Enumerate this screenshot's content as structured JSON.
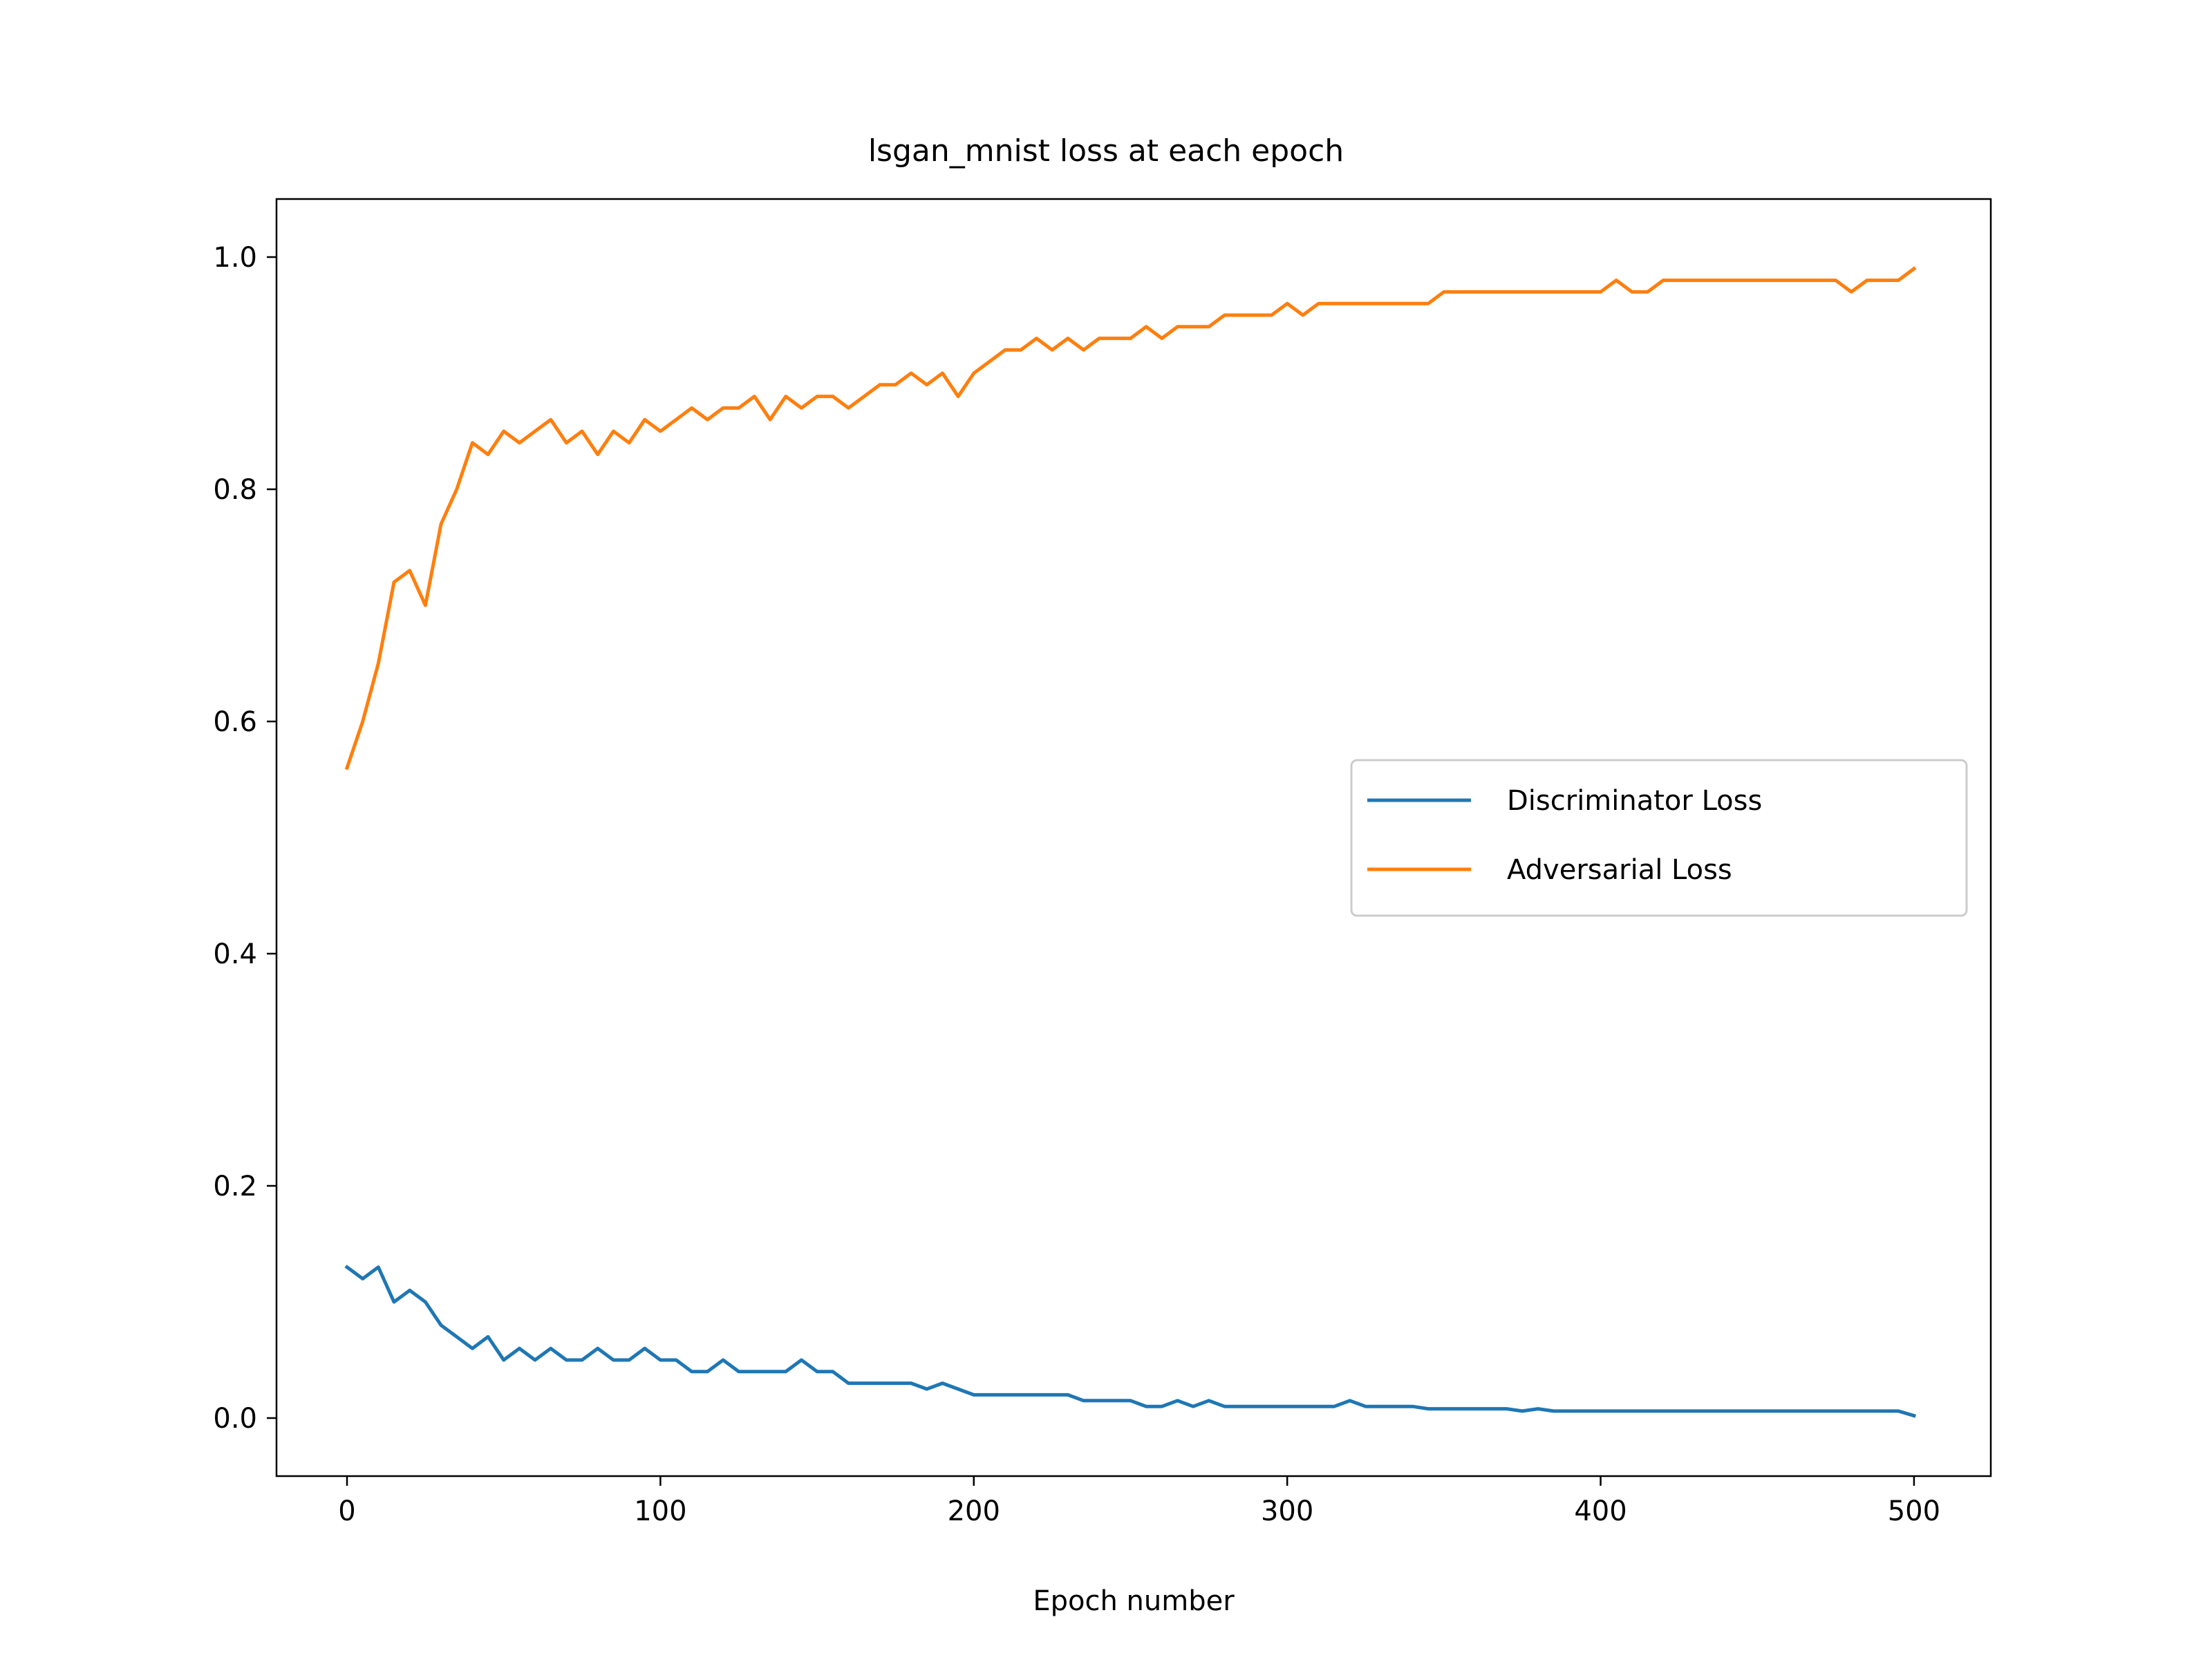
{
  "chart_data": {
    "type": "line",
    "title": "lsgan_mnist loss at each epoch",
    "xlabel": "Epoch number",
    "ylabel": "",
    "xlim": [
      -22.5,
      524.5
    ],
    "ylim": [
      -0.05,
      1.05
    ],
    "xticks": [
      0,
      100,
      200,
      300,
      400,
      500
    ],
    "yticks": [
      0.0,
      0.2,
      0.4,
      0.6,
      0.8,
      1.0
    ],
    "xtick_labels": [
      "0",
      "100",
      "200",
      "300",
      "400",
      "500"
    ],
    "ytick_labels": [
      "0.0",
      "0.2",
      "0.4",
      "0.6",
      "0.8",
      "1.0"
    ],
    "grid": false,
    "legend_position": "center-right",
    "x": [
      0,
      5,
      10,
      15,
      20,
      25,
      30,
      35,
      40,
      45,
      50,
      55,
      60,
      65,
      70,
      75,
      80,
      85,
      90,
      95,
      100,
      105,
      110,
      115,
      120,
      125,
      130,
      135,
      140,
      145,
      150,
      155,
      160,
      165,
      170,
      175,
      180,
      185,
      190,
      195,
      200,
      205,
      210,
      215,
      220,
      225,
      230,
      235,
      240,
      245,
      250,
      255,
      260,
      265,
      270,
      275,
      280,
      285,
      290,
      295,
      300,
      305,
      310,
      315,
      320,
      325,
      330,
      335,
      340,
      345,
      350,
      355,
      360,
      365,
      370,
      375,
      380,
      385,
      390,
      395,
      400,
      405,
      410,
      415,
      420,
      425,
      430,
      435,
      440,
      445,
      450,
      455,
      460,
      465,
      470,
      475,
      480,
      485,
      490,
      495,
      500
    ],
    "series": [
      {
        "name": "Discriminator Loss",
        "color": "#1f77b4",
        "values": [
          0.13,
          0.12,
          0.13,
          0.1,
          0.11,
          0.1,
          0.08,
          0.07,
          0.06,
          0.07,
          0.05,
          0.06,
          0.05,
          0.06,
          0.05,
          0.05,
          0.06,
          0.05,
          0.05,
          0.06,
          0.05,
          0.05,
          0.04,
          0.04,
          0.05,
          0.04,
          0.04,
          0.04,
          0.04,
          0.05,
          0.04,
          0.04,
          0.03,
          0.03,
          0.03,
          0.03,
          0.03,
          0.025,
          0.03,
          0.025,
          0.02,
          0.02,
          0.02,
          0.02,
          0.02,
          0.02,
          0.02,
          0.015,
          0.015,
          0.015,
          0.015,
          0.01,
          0.01,
          0.015,
          0.01,
          0.015,
          0.01,
          0.01,
          0.01,
          0.01,
          0.01,
          0.01,
          0.01,
          0.01,
          0.015,
          0.01,
          0.01,
          0.01,
          0.01,
          0.008,
          0.008,
          0.008,
          0.008,
          0.008,
          0.008,
          0.006,
          0.008,
          0.006,
          0.006,
          0.006,
          0.006,
          0.006,
          0.006,
          0.006,
          0.006,
          0.006,
          0.006,
          0.006,
          0.006,
          0.006,
          0.006,
          0.006,
          0.006,
          0.006,
          0.006,
          0.006,
          0.006,
          0.006,
          0.006,
          0.006,
          0.002
        ]
      },
      {
        "name": "Adversarial Loss",
        "color": "#ff7f0e",
        "values": [
          0.56,
          0.6,
          0.65,
          0.72,
          0.73,
          0.7,
          0.77,
          0.8,
          0.84,
          0.83,
          0.85,
          0.84,
          0.85,
          0.86,
          0.84,
          0.85,
          0.83,
          0.85,
          0.84,
          0.86,
          0.85,
          0.86,
          0.87,
          0.86,
          0.87,
          0.87,
          0.88,
          0.86,
          0.88,
          0.87,
          0.88,
          0.88,
          0.87,
          0.88,
          0.89,
          0.89,
          0.9,
          0.89,
          0.9,
          0.88,
          0.9,
          0.91,
          0.92,
          0.92,
          0.93,
          0.92,
          0.93,
          0.92,
          0.93,
          0.93,
          0.93,
          0.94,
          0.93,
          0.94,
          0.94,
          0.94,
          0.95,
          0.95,
          0.95,
          0.95,
          0.96,
          0.95,
          0.96,
          0.96,
          0.96,
          0.96,
          0.96,
          0.96,
          0.96,
          0.96,
          0.97,
          0.97,
          0.97,
          0.97,
          0.97,
          0.97,
          0.97,
          0.97,
          0.97,
          0.97,
          0.97,
          0.98,
          0.97,
          0.97,
          0.98,
          0.98,
          0.98,
          0.98,
          0.98,
          0.98,
          0.98,
          0.98,
          0.98,
          0.98,
          0.98,
          0.98,
          0.97,
          0.98,
          0.98,
          0.98,
          0.99
        ]
      }
    ]
  }
}
